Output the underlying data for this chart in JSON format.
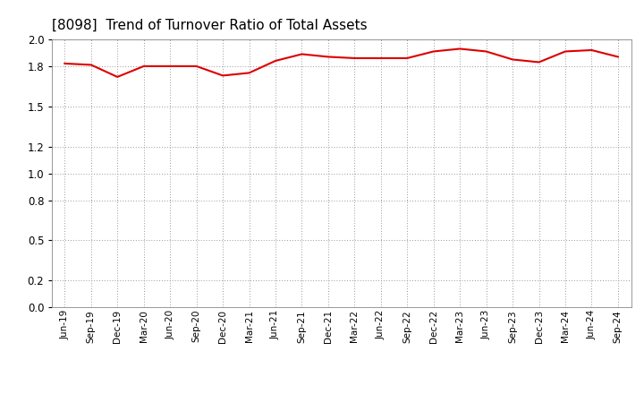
{
  "title": "[8098]  Trend of Turnover Ratio of Total Assets",
  "title_fontsize": 11,
  "line_color": "#dd0000",
  "line_width": 1.5,
  "background_color": "#ffffff",
  "grid_color": "#999999",
  "ylim": [
    0.0,
    2.0
  ],
  "yticks": [
    0.0,
    0.2,
    0.5,
    0.8,
    1.0,
    1.2,
    1.5,
    1.8,
    2.0
  ],
  "labels": [
    "Jun-19",
    "Sep-19",
    "Dec-19",
    "Mar-20",
    "Jun-20",
    "Sep-20",
    "Dec-20",
    "Mar-21",
    "Jun-21",
    "Sep-21",
    "Dec-21",
    "Mar-22",
    "Jun-22",
    "Sep-22",
    "Dec-22",
    "Mar-23",
    "Jun-23",
    "Sep-23",
    "Dec-23",
    "Mar-24",
    "Jun-24",
    "Sep-24"
  ],
  "values": [
    1.82,
    1.81,
    1.72,
    1.8,
    1.8,
    1.8,
    1.73,
    1.75,
    1.84,
    1.89,
    1.87,
    1.86,
    1.86,
    1.86,
    1.91,
    1.93,
    1.91,
    1.85,
    1.83,
    1.91,
    1.92,
    1.87
  ]
}
